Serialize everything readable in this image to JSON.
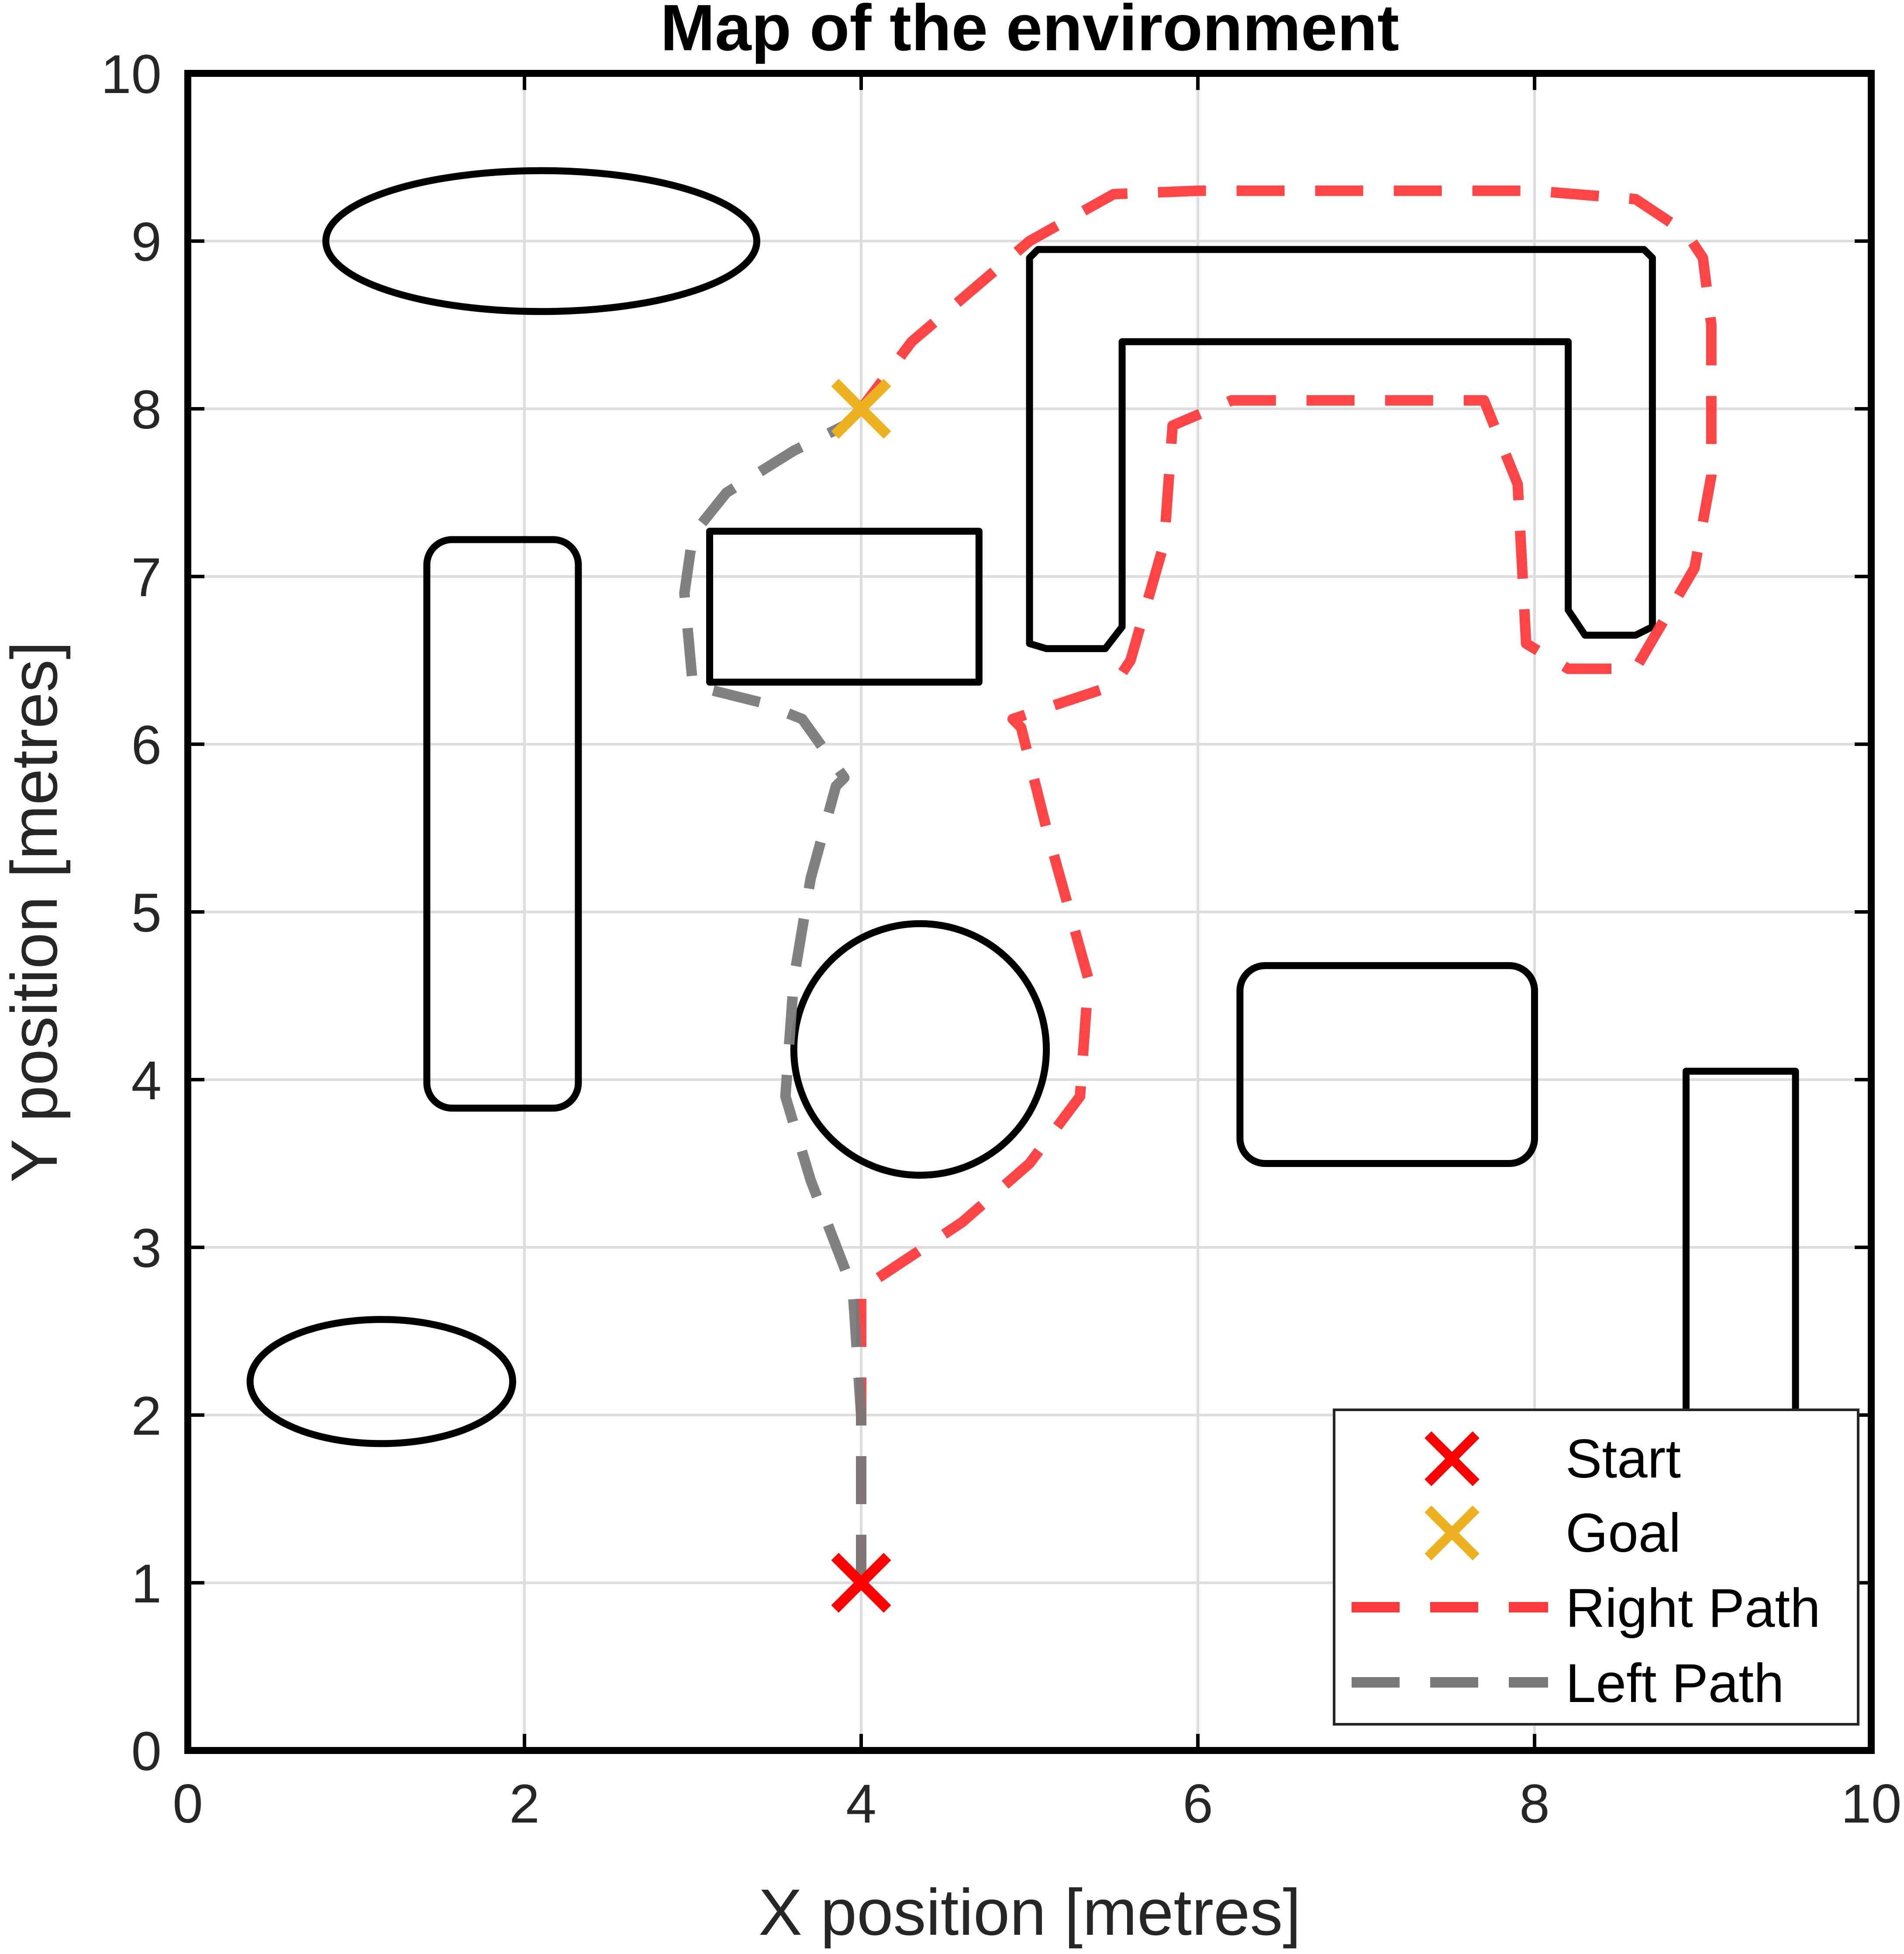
{
  "chart_data": {
    "type": "line",
    "title": "Map of the environment",
    "xlabel": "X position [metres]",
    "ylabel": "Y position [metres]",
    "xlim": [
      0,
      10
    ],
    "ylim": [
      0,
      10
    ],
    "xticks": [
      "0",
      "2",
      "4",
      "6",
      "8",
      "10"
    ],
    "yticks": [
      "0",
      "1",
      "2",
      "3",
      "4",
      "5",
      "6",
      "7",
      "8",
      "9",
      "10"
    ],
    "grid": true,
    "legend_position": "bottom-right",
    "colors": {
      "start": "#ff0000",
      "goal": "#edb120",
      "right_path": "#ff3b3b",
      "left_path": "#7a7a7a",
      "obstacle": "#000000"
    },
    "markers": [
      {
        "name": "Start",
        "x": 4,
        "y": 1
      },
      {
        "name": "Goal",
        "x": 4,
        "y": 8
      }
    ],
    "series": [
      {
        "name": "Right Path",
        "x": [
          4,
          4,
          4,
          4.6,
          5,
          5.3,
          5.35,
          5.1,
          4.95,
          4.9,
          5.5,
          5.6,
          5.8,
          5.85,
          6.2,
          7,
          7.7,
          7.9,
          7.95,
          8.2,
          8.6,
          8.95,
          9.05,
          9.05,
          9.0,
          8.9,
          8.6,
          8.0,
          7.0,
          6.0,
          5.5,
          5.0,
          4.3,
          4.0
        ],
        "y": [
          1,
          2,
          2.75,
          3.15,
          3.5,
          3.9,
          4.6,
          5.5,
          6.1,
          6.15,
          6.35,
          6.5,
          7.2,
          7.9,
          8.05,
          8.05,
          8.05,
          7.55,
          6.6,
          6.45,
          6.45,
          7.05,
          7.6,
          8.5,
          8.9,
          9.05,
          9.25,
          9.3,
          9.3,
          9.3,
          9.28,
          9.0,
          8.4,
          8.0
        ]
      },
      {
        "name": "Left Path",
        "x": [
          4,
          4,
          3.95,
          3.7,
          3.55,
          3.6,
          3.7,
          3.85,
          3.9,
          3.65,
          3.4,
          3.0,
          2.95,
          3.0,
          3.2,
          3.6,
          3.9,
          4.0
        ],
        "y": [
          1,
          2,
          2.75,
          3.4,
          3.9,
          4.6,
          5.2,
          5.75,
          5.8,
          6.15,
          6.25,
          6.35,
          6.9,
          7.25,
          7.5,
          7.75,
          7.9,
          8.0
        ]
      }
    ],
    "obstacles": [
      {
        "shape": "ellipse",
        "cx": 2.1,
        "cy": 9.0,
        "rx": 1.28,
        "ry": 0.42
      },
      {
        "shape": "rounded-rect",
        "x0": 1.42,
        "y0": 3.83,
        "x1": 2.32,
        "y1": 7.22,
        "r": 0.15
      },
      {
        "shape": "ellipse",
        "cx": 1.15,
        "cy": 2.2,
        "rx": 0.78,
        "ry": 0.37
      },
      {
        "shape": "rect",
        "x0": 3.1,
        "y0": 6.37,
        "x1": 4.7,
        "y1": 7.27
      },
      {
        "shape": "circle",
        "cx": 4.35,
        "cy": 4.18,
        "r": 0.75
      },
      {
        "shape": "rounded-rect",
        "x0": 6.25,
        "y0": 3.5,
        "x1": 8.0,
        "y1": 4.68,
        "r": 0.15
      },
      {
        "shape": "rect",
        "x0": 8.9,
        "y0": 2.0,
        "x1": 9.55,
        "y1": 4.05
      },
      {
        "shape": "polygon",
        "points": [
          [
            5.0,
            6.6
          ],
          [
            5.0,
            8.9
          ],
          [
            5.05,
            8.95
          ],
          [
            8.65,
            8.95
          ],
          [
            8.7,
            8.9
          ],
          [
            8.7,
            6.7
          ],
          [
            8.6,
            6.65
          ],
          [
            8.3,
            6.65
          ],
          [
            8.2,
            6.8
          ],
          [
            8.2,
            8.4
          ],
          [
            5.55,
            8.4
          ],
          [
            5.55,
            6.7
          ],
          [
            5.45,
            6.57
          ],
          [
            5.1,
            6.57
          ]
        ]
      }
    ]
  },
  "legend": {
    "start_label": "Start",
    "goal_label": "Goal",
    "right_path_label": "Right Path",
    "left_path_label": "Left Path"
  }
}
